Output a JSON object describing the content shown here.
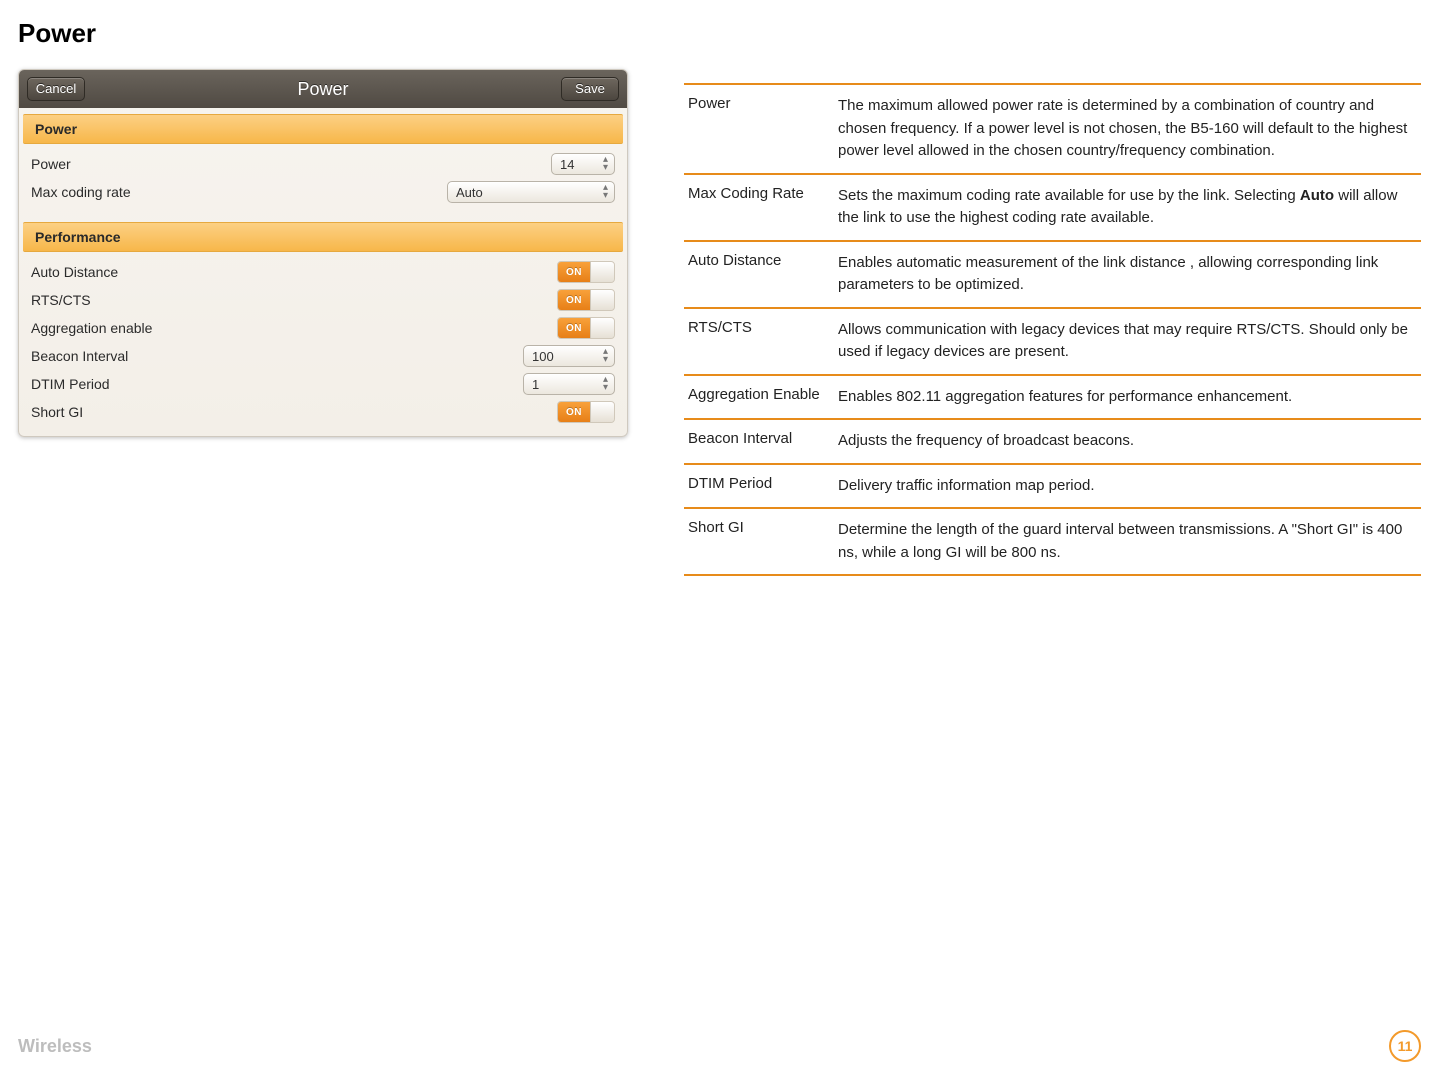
{
  "colors": {
    "accent": "#e78b1a",
    "toggle_on": "#ee8a23",
    "section_header_bg_top": "#fcd083",
    "section_header_bg_bottom": "#f7b74a",
    "panel_header_top": "#6a645c",
    "panel_header_bottom": "#504a43",
    "footer_gray": "#bdbdbd"
  },
  "page": {
    "title": "Power",
    "footer_breadcrumb": "Wireless",
    "page_number": "11"
  },
  "panel": {
    "title": "Power",
    "cancel_label": "Cancel",
    "save_label": "Save",
    "sections": {
      "power": {
        "title": "Power",
        "rows": {
          "power": {
            "label": "Power",
            "value": "14",
            "control": "select"
          },
          "max_coding_rate": {
            "label": "Max coding rate",
            "value": "Auto",
            "control": "select"
          }
        }
      },
      "performance": {
        "title": "Performance",
        "rows": {
          "auto_distance": {
            "label": "Auto Distance",
            "value": "ON",
            "control": "toggle"
          },
          "rts_cts": {
            "label": "RTS/CTS",
            "value": "ON",
            "control": "toggle"
          },
          "aggregation_enable": {
            "label": "Aggregation enable",
            "value": "ON",
            "control": "toggle"
          },
          "beacon_interval": {
            "label": "Beacon Interval",
            "value": "100",
            "control": "select"
          },
          "dtim_period": {
            "label": "DTIM Period",
            "value": "1",
            "control": "select"
          },
          "short_gi": {
            "label": "Short GI",
            "value": "ON",
            "control": "toggle"
          }
        }
      }
    }
  },
  "descriptions": [
    {
      "term": "Power",
      "def": "The maximum allowed power rate is determined by a combination of country and chosen frequency. If a power level is not chosen, the B5-160 will default to the highest power level allowed in the chosen country/frequency combination."
    },
    {
      "term": "Max Coding Rate",
      "def_pre": "Sets the maximum coding rate available for use by the link. Selecting ",
      "def_bold": "Auto",
      "def_post": " will allow the link to use the highest coding rate available."
    },
    {
      "term": "Auto Distance",
      "def": "Enables automatic measurement of the link distance , allowing corresponding link parameters to be optimized."
    },
    {
      "term": "RTS/CTS",
      "def": "Allows communication with legacy devices that may require RTS/CTS. Should only be used if legacy devices are present."
    },
    {
      "term": "Aggregation Enable",
      "def": "Enables 802.11 aggregation features for performance enhancement."
    },
    {
      "term": "Beacon Interval",
      "def": "Adjusts the frequency of broadcast beacons."
    },
    {
      "term": "DTIM Period",
      "def": "Delivery traffic information map period."
    },
    {
      "term": "Short GI",
      "def": "Determine the length of the guard interval between transmissions. A \"Short GI\" is 400 ns, while a long GI will be 800 ns."
    }
  ]
}
